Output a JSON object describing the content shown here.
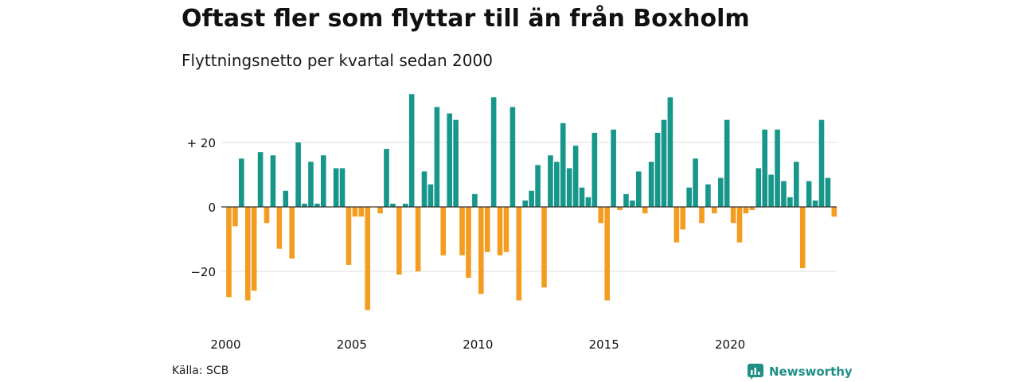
{
  "header": {
    "title": "Oftast fler som flyttar till än från Boxholm",
    "subtitle": "Flyttningsnetto per kvartal sedan 2000"
  },
  "footer": {
    "source": "Källa: SCB",
    "brand": "Newsworthy"
  },
  "colors": {
    "positive": "#17968a",
    "negative": "#f39c1f",
    "grid": "#dddddd",
    "zero_line": "#333333",
    "brand": "#1f8f86"
  },
  "chart_data": {
    "type": "bar",
    "x_start": "2000 Q1",
    "values": [
      -28,
      -6,
      15,
      -29,
      -26,
      17,
      -5,
      16,
      -13,
      5,
      -16,
      20,
      1,
      14,
      1,
      16,
      0,
      12,
      12,
      -18,
      -3,
      -3,
      -32,
      0,
      -2,
      18,
      1,
      -21,
      1,
      35,
      -20,
      11,
      7,
      31,
      -15,
      29,
      27,
      -15,
      -22,
      4,
      -27,
      -14,
      34,
      -15,
      -14,
      31,
      -29,
      2,
      5,
      13,
      -25,
      16,
      14,
      26,
      12,
      19,
      6,
      3,
      23,
      -5,
      -29,
      24,
      -1,
      4,
      2,
      11,
      -2,
      14,
      23,
      27,
      34,
      -11,
      -7,
      6,
      15,
      -5,
      7,
      -2,
      9,
      27,
      -5,
      -11,
      -2,
      -1,
      12,
      24,
      10,
      24,
      8,
      3,
      14,
      -19,
      8,
      2,
      27,
      9,
      -3
    ],
    "x_tick_labels": [
      "2000",
      "2005",
      "2010",
      "2015",
      "2020"
    ],
    "x_tick_years": [
      2000,
      2005,
      2010,
      2015,
      2020
    ],
    "y_ticks": [
      20,
      0,
      -20
    ],
    "y_tick_labels": [
      "+ 20",
      "0",
      "−20"
    ],
    "ylim": [
      -35,
      38
    ],
    "grid": true,
    "legend": "none"
  }
}
